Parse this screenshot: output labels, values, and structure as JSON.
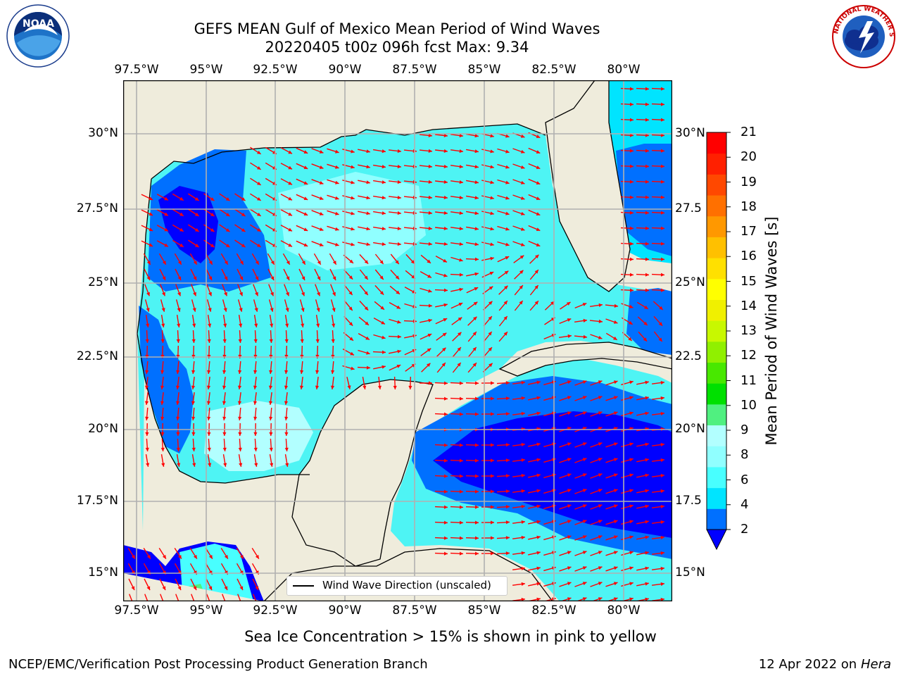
{
  "header": {
    "title_line1": "GEFS MEAN Gulf of Mexico Mean Period of Wind Waves",
    "title_line2": "20220405 t00z 096h fcst   Max: 9.34"
  },
  "logos": {
    "noaa_text": "NOAA",
    "noaa_ring": "NATIONAL OCEANIC AND ATMOSPHERIC ADMINISTRATION · U.S. DEPARTMENT OF COMMERCE",
    "nws_ring": "NATIONAL WEATHER SERVICE"
  },
  "map": {
    "lon_labels": [
      "97.5°W",
      "95°W",
      "92.5°W",
      "90°W",
      "87.5°W",
      "85°W",
      "82.5°W",
      "80°W"
    ],
    "lat_labels_left": [
      "30°N",
      "27.5°N",
      "25°N",
      "22.5°N",
      "20°N",
      "17.5°N",
      "15°N"
    ],
    "lat_labels_right": [
      "30°N",
      "27.5",
      "25°N",
      "22.5",
      "20°N",
      "17.5",
      "15°N"
    ],
    "legend_label": "Wind Wave Direction (unscaled)",
    "colors": {
      "land": "#efecdc",
      "arrow": "#ff0000",
      "grid": "#b0b0b0"
    }
  },
  "colorbar": {
    "label": "Mean Period of Wind Waves [s]",
    "tick_labels": [
      "2",
      "4",
      "6",
      "8",
      "9",
      "10",
      "11",
      "12",
      "13",
      "14",
      "15",
      "16",
      "17",
      "18",
      "19",
      "20",
      "21"
    ],
    "colors": [
      "#0000ff",
      "#0070ff",
      "#00e4ff",
      "#48ffff",
      "#90ffff",
      "#b2ffff",
      "#50f080",
      "#00e000",
      "#48e800",
      "#90f000",
      "#c8f800",
      "#f0f000",
      "#ffff00",
      "#ffe000",
      "#ffc000",
      "#ff9800",
      "#ff7000",
      "#ff4800",
      "#ff2000",
      "#ff0000"
    ]
  },
  "footer": {
    "ice_note": "Sea Ice Concentration > 15% is shown in pink to yellow",
    "credit": "NCEP/EMC/Verification Post Processing Product Generation Branch",
    "date_prefix": "12 Apr 2022 on ",
    "machine": "Hera"
  }
}
